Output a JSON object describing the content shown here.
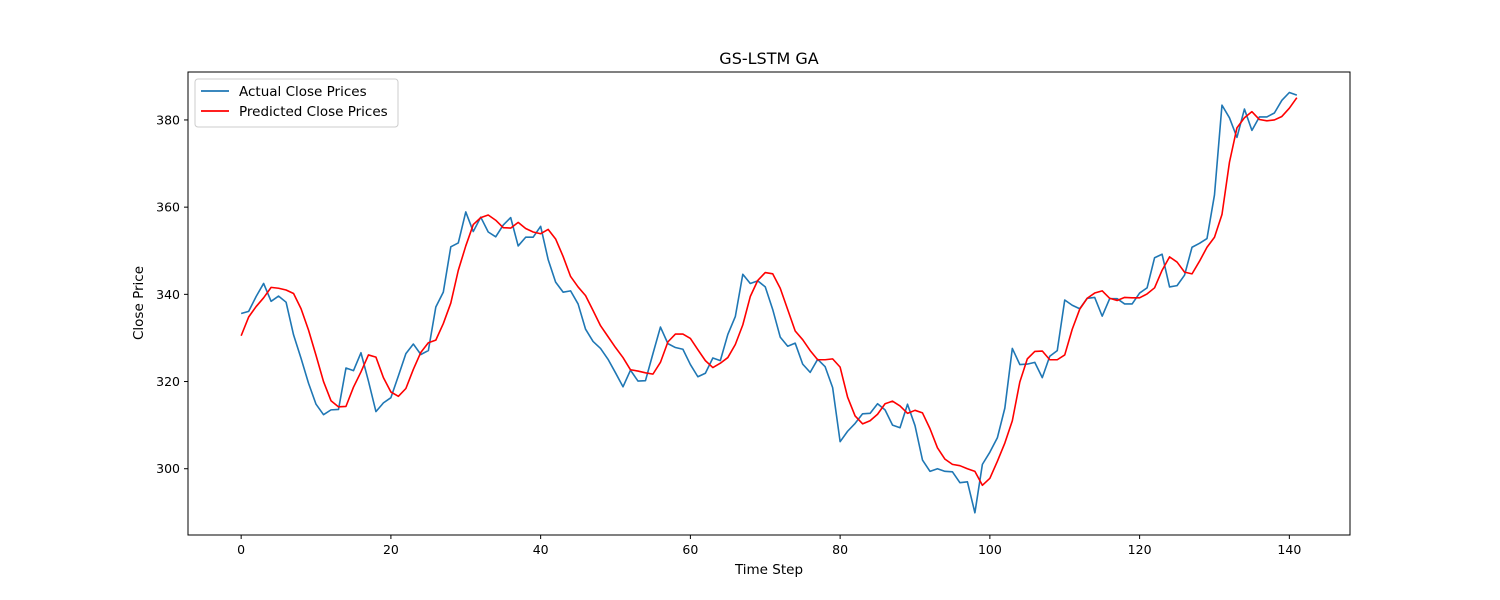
{
  "chart_data": {
    "type": "line",
    "title": "GS-LSTM GA",
    "xlabel": "Time Step",
    "ylabel": "Close Price",
    "xlim": [
      -7.1,
      148.1
    ],
    "ylim": [
      284.8,
      391.0
    ],
    "xticks": [
      0,
      20,
      40,
      60,
      80,
      100,
      120,
      140
    ],
    "yticks": [
      300,
      320,
      340,
      360,
      380
    ],
    "grid": false,
    "legend_position": "top-left",
    "x": [
      0,
      1,
      2,
      3,
      4,
      5,
      6,
      7,
      8,
      9,
      10,
      11,
      12,
      13,
      14,
      15,
      16,
      17,
      18,
      19,
      20,
      21,
      22,
      23,
      24,
      25,
      26,
      27,
      28,
      29,
      30,
      31,
      32,
      33,
      34,
      35,
      36,
      37,
      38,
      39,
      40,
      41,
      42,
      43,
      44,
      45,
      46,
      47,
      48,
      49,
      50,
      51,
      52,
      53,
      54,
      55,
      56,
      57,
      58,
      59,
      60,
      61,
      62,
      63,
      64,
      65,
      66,
      67,
      68,
      69,
      70,
      71,
      72,
      73,
      74,
      75,
      76,
      77,
      78,
      79,
      80,
      81,
      82,
      83,
      84,
      85,
      86,
      87,
      88,
      89,
      90,
      91,
      92,
      93,
      94,
      95,
      96,
      97,
      98,
      99,
      100,
      101,
      102,
      103,
      104,
      105,
      106,
      107,
      108,
      109,
      110,
      111,
      112,
      113,
      114,
      115,
      116,
      117,
      118,
      119,
      120,
      121,
      122,
      123,
      124,
      125,
      126,
      127,
      128,
      129,
      130,
      131,
      132,
      133,
      134,
      135,
      136,
      137,
      138,
      139,
      140,
      141
    ],
    "series": [
      {
        "name": "Actual Close Prices",
        "color": "#1f77b4",
        "values": [
          335.6,
          336.1,
          339.5,
          342.5,
          338.4,
          339.6,
          338.2,
          330.7,
          325.3,
          319.6,
          314.8,
          312.4,
          313.5,
          313.6,
          323.1,
          322.5,
          326.6,
          320.1,
          313.1,
          315.1,
          316.3,
          321.3,
          326.4,
          328.6,
          326.2,
          327.1,
          337.1,
          340.5,
          350.9,
          351.8,
          358.9,
          354.4,
          357.7,
          354.3,
          353.2,
          355.9,
          357.6,
          351.1,
          353.1,
          353.1,
          355.6,
          348.0,
          342.8,
          340.5,
          340.8,
          337.8,
          332.0,
          329.2,
          327.6,
          325.1,
          322.0,
          318.8,
          322.6,
          320.1,
          320.2,
          326.4,
          332.5,
          328.7,
          327.8,
          327.4,
          323.9,
          321.1,
          321.9,
          325.4,
          324.8,
          330.8,
          334.9,
          344.6,
          342.5,
          343.1,
          341.7,
          336.5,
          330.2,
          328.1,
          328.8,
          324.0,
          322.1,
          325.1,
          323.4,
          318.6,
          306.2,
          308.6,
          310.4,
          312.6,
          312.7,
          314.9,
          313.5,
          310.0,
          309.4,
          314.8,
          309.9,
          302.0,
          299.4,
          300.0,
          299.4,
          299.3,
          296.8,
          297.0,
          289.9,
          301.0,
          303.8,
          307.1,
          313.9,
          327.6,
          323.9,
          324.0,
          324.4,
          320.9,
          325.8,
          327.1,
          338.7,
          337.5,
          336.7,
          339.1,
          339.3,
          335.0,
          339.0,
          339.0,
          337.8,
          337.8,
          340.3,
          341.5,
          348.4,
          349.2,
          341.7,
          342.0,
          344.4,
          350.8,
          351.7,
          352.8,
          362.8,
          383.4,
          380.5,
          376.0,
          382.5,
          377.6,
          380.7,
          380.7,
          381.6,
          384.5,
          386.3,
          385.7
        ]
      },
      {
        "name": "Predicted Close Prices",
        "color": "#ff0000",
        "values": [
          330.5,
          334.8,
          337.2,
          339.2,
          341.6,
          341.4,
          341.0,
          340.2,
          336.7,
          331.8,
          326.0,
          320.0,
          315.6,
          314.2,
          314.3,
          318.7,
          322.2,
          326.1,
          325.6,
          320.9,
          317.6,
          316.6,
          318.4,
          322.8,
          326.7,
          328.9,
          329.5,
          333.3,
          338.0,
          345.5,
          351.1,
          356.0,
          357.6,
          358.2,
          357.0,
          355.3,
          355.2,
          356.5,
          355.1,
          354.3,
          353.9,
          354.9,
          352.7,
          348.7,
          344.1,
          341.7,
          339.7,
          336.3,
          332.8,
          330.3,
          327.8,
          325.5,
          322.7,
          322.4,
          322.0,
          321.7,
          324.4,
          329.1,
          330.9,
          330.9,
          329.9,
          327.3,
          324.8,
          323.2,
          324.2,
          325.5,
          328.5,
          333.0,
          339.5,
          343.2,
          345.0,
          344.7,
          341.4,
          336.5,
          331.6,
          329.6,
          327.1,
          325.0,
          325.0,
          325.2,
          323.3,
          316.4,
          312.1,
          310.3,
          311.0,
          312.5,
          314.9,
          315.5,
          314.4,
          312.7,
          313.4,
          312.8,
          309.2,
          304.8,
          302.2,
          301.0,
          300.7,
          300.0,
          299.4,
          296.2,
          297.8,
          301.7,
          305.9,
          311.0,
          319.9,
          325.2,
          326.9,
          327.0,
          325.0,
          325.0,
          326.1,
          332.0,
          336.6,
          339.1,
          340.3,
          340.8,
          339.1,
          338.6,
          339.3,
          339.2,
          339.2,
          340.1,
          341.5,
          345.5,
          348.6,
          347.4,
          345.1,
          344.7,
          347.6,
          350.8,
          353.1,
          358.3,
          370.3,
          378.2,
          380.5,
          381.9,
          380.1,
          379.8,
          380.0,
          380.8,
          382.7,
          385.1
        ]
      }
    ]
  }
}
